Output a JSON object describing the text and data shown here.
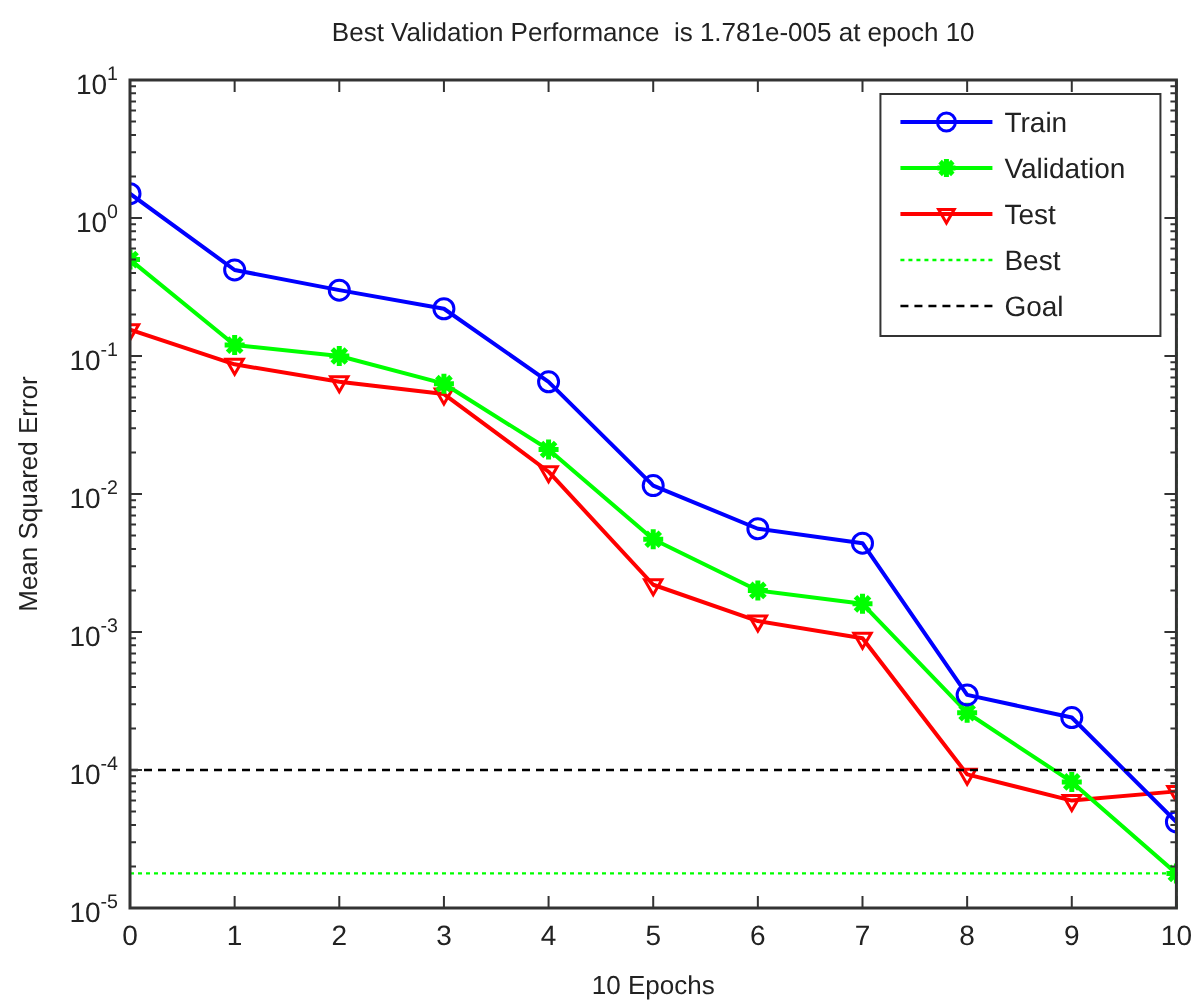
{
  "chart_data": {
    "type": "line",
    "title": "Best Validation Performance  is 1.781e-005 at epoch 10",
    "xlabel": "10 Epochs",
    "ylabel": "Mean Squared Error",
    "x": [
      0,
      1,
      2,
      3,
      4,
      5,
      6,
      7,
      8,
      9,
      10
    ],
    "series": [
      {
        "name": "Train",
        "color": "#0000ff",
        "marker": "circle",
        "values": [
          1.5,
          0.42,
          0.3,
          0.22,
          0.065,
          0.0115,
          0.0056,
          0.0044,
          0.00035,
          0.00024,
          4.2e-05
        ]
      },
      {
        "name": "Validation",
        "color": "#00ff00",
        "marker": "cross",
        "values": [
          0.5,
          0.12,
          0.1,
          0.063,
          0.021,
          0.0047,
          0.002,
          0.0016,
          0.00026,
          8.2e-05,
          1.781e-05
        ]
      },
      {
        "name": "Test",
        "color": "#ff0000",
        "marker": "triangle",
        "values": [
          0.155,
          0.087,
          0.065,
          0.053,
          0.0145,
          0.0022,
          0.0012,
          0.0009,
          9.3e-05,
          6e-05,
          7e-05
        ]
      }
    ],
    "ref_lines": [
      {
        "axis": "y",
        "value": 1.781e-05,
        "label": "Best",
        "color": "#00ff00",
        "line_style": "dotted"
      },
      {
        "axis": "y",
        "value": 0.0001,
        "label": "Goal",
        "color": "#000000",
        "line_style": "dashed"
      },
      {
        "axis": "x",
        "value": 10,
        "color": "#00ff00",
        "line_style": "dotted"
      }
    ],
    "log": "y",
    "xlim": [
      0,
      10
    ],
    "xticks": [
      0,
      1,
      2,
      3,
      4,
      5,
      6,
      7,
      8,
      9,
      10
    ],
    "ylim": [
      1e-05,
      10
    ],
    "yticks": [
      {
        "value": 1e-05,
        "label": "10$^{-5}$"
      },
      {
        "value": 0.0001,
        "label": "10$^{-4}$"
      },
      {
        "value": 0.001,
        "label": "10$^{-3}$"
      },
      {
        "value": 0.01,
        "label": "10$^{-2}$"
      },
      {
        "value": 0.1,
        "label": "10$^{-1}$"
      },
      {
        "value": 1,
        "label": "10$^{0}$"
      },
      {
        "value": 10,
        "label": "10$^{1}$"
      }
    ],
    "grid": false,
    "legend": "top right"
  }
}
